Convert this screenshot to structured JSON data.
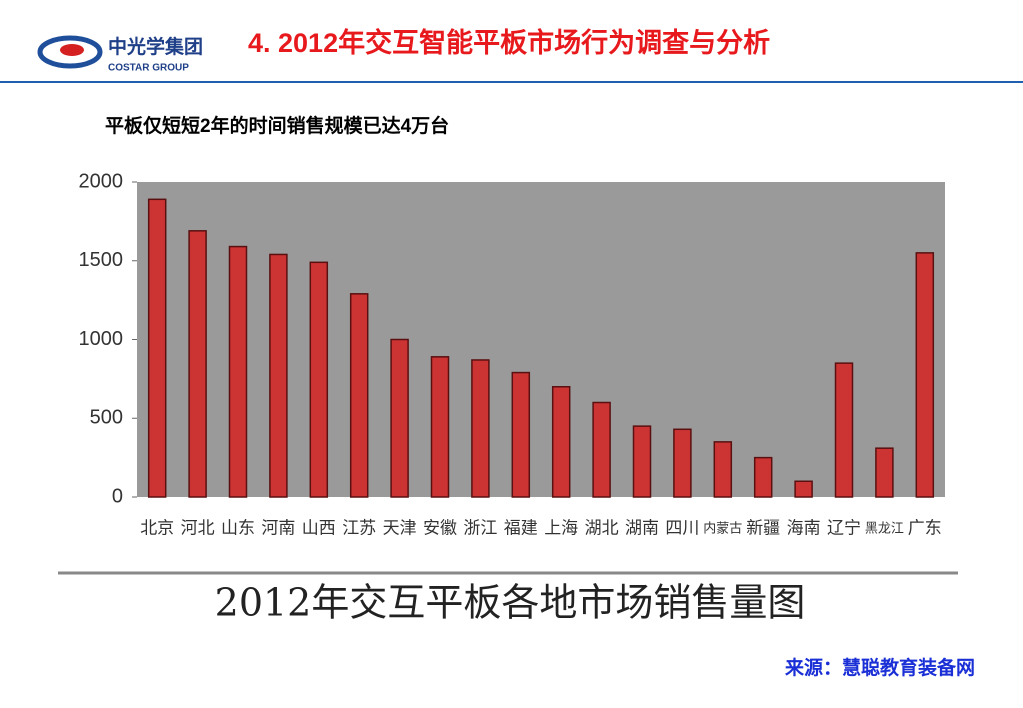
{
  "header": {
    "logo_name": "中光学集团",
    "logo_sub": "COSTAR GROUP",
    "title": "4.  2012年交互智能平板市场行为调查与分析"
  },
  "subtitle": "平板仅短短2年的时间销售规模已达4万台",
  "source": "来源：慧聪教育装备网",
  "chart_data": {
    "type": "bar",
    "title": "2012年交互平板各地市场销售量图",
    "categories": [
      "北京",
      "河北",
      "山东",
      "河南",
      "山西",
      "江苏",
      "天津",
      "安徽",
      "浙江",
      "福建",
      "上海",
      "湖北",
      "湖南",
      "四川",
      "内蒙古",
      "新疆",
      "海南",
      "辽宁",
      "黑龙江",
      "广东"
    ],
    "values": [
      1890,
      1690,
      1590,
      1540,
      1490,
      1290,
      1000,
      890,
      870,
      790,
      700,
      600,
      450,
      430,
      350,
      250,
      100,
      850,
      310,
      1550
    ],
    "color": "#cc3333",
    "ylim": [
      0,
      2000
    ],
    "yticks": [
      0,
      500,
      1000,
      1500,
      2000
    ],
    "grid": false
  }
}
